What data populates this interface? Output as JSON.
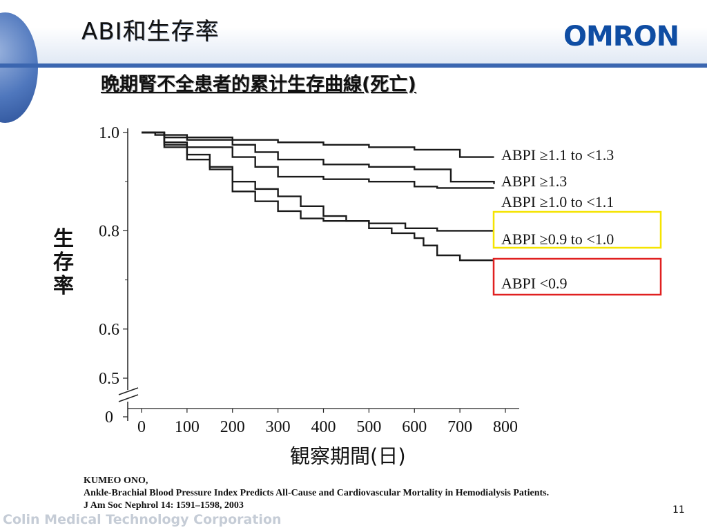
{
  "header": {
    "slide_title": "ABI和生存率",
    "logo_text": "OMRON",
    "brand_color": "#0f4da3",
    "bar_color": "#3b66b0"
  },
  "chart_title": "晩期腎不全患者的累计生存曲線(死亡)",
  "chart_data": {
    "type": "line",
    "title": "晩期腎不全患者的累计生存曲線(死亡)",
    "ylabel": "生存率",
    "xlabel": "観察期間(日)",
    "x_ticks": [
      "0",
      "100",
      "200",
      "300",
      "400",
      "500",
      "600",
      "700",
      "800"
    ],
    "y_ticks": [
      "1.0",
      "0.8",
      "0.6",
      "0.5",
      "0"
    ],
    "xlim": [
      0,
      800
    ],
    "ylim": [
      0.5,
      1.0
    ],
    "axis_break": true,
    "series": [
      {
        "name": "ABPI ≥1.1 to <1.3",
        "points": [
          [
            0,
            1.0
          ],
          [
            30,
            0.995
          ],
          [
            100,
            0.99
          ],
          [
            200,
            0.985
          ],
          [
            300,
            0.98
          ],
          [
            400,
            0.975
          ],
          [
            500,
            0.97
          ],
          [
            600,
            0.965
          ],
          [
            700,
            0.95
          ],
          [
            775,
            0.95
          ]
        ]
      },
      {
        "name": "ABPI ≥1.3",
        "points": [
          [
            0,
            1.0
          ],
          [
            50,
            0.99
          ],
          [
            100,
            0.985
          ],
          [
            200,
            0.975
          ],
          [
            250,
            0.96
          ],
          [
            300,
            0.945
          ],
          [
            400,
            0.935
          ],
          [
            500,
            0.93
          ],
          [
            600,
            0.925
          ],
          [
            680,
            0.9
          ],
          [
            775,
            0.895
          ]
        ]
      },
      {
        "name": "ABPI ≥1.0 to <1.1",
        "points": [
          [
            0,
            1.0
          ],
          [
            50,
            0.98
          ],
          [
            100,
            0.97
          ],
          [
            200,
            0.95
          ],
          [
            250,
            0.93
          ],
          [
            300,
            0.91
          ],
          [
            400,
            0.905
          ],
          [
            500,
            0.9
          ],
          [
            600,
            0.89
          ],
          [
            650,
            0.887
          ],
          [
            775,
            0.887
          ]
        ]
      },
      {
        "name": "ABPI ≥0.9 to <1.0",
        "points": [
          [
            0,
            1.0
          ],
          [
            50,
            0.97
          ],
          [
            100,
            0.955
          ],
          [
            150,
            0.93
          ],
          [
            200,
            0.88
          ],
          [
            250,
            0.86
          ],
          [
            300,
            0.84
          ],
          [
            350,
            0.825
          ],
          [
            400,
            0.82
          ],
          [
            500,
            0.815
          ],
          [
            580,
            0.805
          ],
          [
            650,
            0.8
          ],
          [
            775,
            0.8
          ]
        ]
      },
      {
        "name": "ABPI <0.9",
        "points": [
          [
            0,
            1.0
          ],
          [
            50,
            0.975
          ],
          [
            100,
            0.945
          ],
          [
            150,
            0.925
          ],
          [
            200,
            0.9
          ],
          [
            250,
            0.885
          ],
          [
            300,
            0.87
          ],
          [
            350,
            0.85
          ],
          [
            400,
            0.83
          ],
          [
            450,
            0.82
          ],
          [
            500,
            0.805
          ],
          [
            550,
            0.795
          ],
          [
            600,
            0.785
          ],
          [
            620,
            0.77
          ],
          [
            650,
            0.75
          ],
          [
            700,
            0.74
          ],
          [
            775,
            0.74
          ]
        ]
      }
    ],
    "highlights": [
      {
        "series": "ABPI ≥0.9 to <1.0",
        "color": "#f5e400"
      },
      {
        "series": "ABPI <0.9",
        "color": "#e02020"
      }
    ]
  },
  "reference": {
    "author": "KUMEO ONO,",
    "title": "Ankle-Brachial Blood Pressure Index Predicts All-Cause and Cardiovascular Mortality in Hemodialysis Patients.",
    "citation": "J Am Soc Nephrol 14: 1591–1598, 2003"
  },
  "footer": {
    "company": "Colin Medical Technology Corporation",
    "page_number": "11"
  }
}
